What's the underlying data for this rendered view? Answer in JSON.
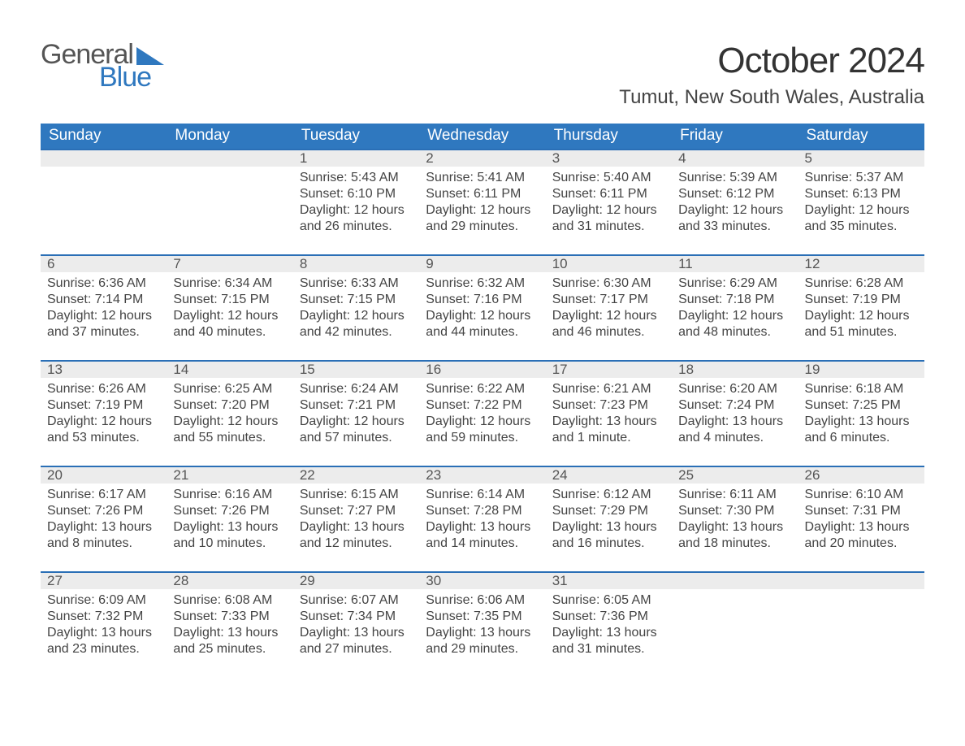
{
  "colors": {
    "header_blue": "#2f78bf",
    "accent_blue": "#2a6fb6",
    "daynum_bg": "#ececec",
    "text": "#444444",
    "daynum_text": "#555555",
    "logo_gray": "#555555",
    "logo_blue": "#2f78bf",
    "background": "#ffffff"
  },
  "typography": {
    "title_fontsize": 44,
    "subtitle_fontsize": 24,
    "header_fontsize": 19,
    "daynum_fontsize": 17,
    "body_fontsize": 16,
    "logo_fontsize": 34,
    "font_family": "Segoe UI"
  },
  "logo": {
    "line1": "General",
    "line2": "Blue"
  },
  "title": "October 2024",
  "subtitle": "Tumut, New South Wales, Australia",
  "weekday_headers": [
    "Sunday",
    "Monday",
    "Tuesday",
    "Wednesday",
    "Thursday",
    "Friday",
    "Saturday"
  ],
  "weeks": [
    [
      {
        "empty": true
      },
      {
        "empty": true
      },
      {
        "n": "1",
        "sunrise": "5:43 AM",
        "sunset": "6:10 PM",
        "daylight": "12 hours and 26 minutes."
      },
      {
        "n": "2",
        "sunrise": "5:41 AM",
        "sunset": "6:11 PM",
        "daylight": "12 hours and 29 minutes."
      },
      {
        "n": "3",
        "sunrise": "5:40 AM",
        "sunset": "6:11 PM",
        "daylight": "12 hours and 31 minutes."
      },
      {
        "n": "4",
        "sunrise": "5:39 AM",
        "sunset": "6:12 PM",
        "daylight": "12 hours and 33 minutes."
      },
      {
        "n": "5",
        "sunrise": "5:37 AM",
        "sunset": "6:13 PM",
        "daylight": "12 hours and 35 minutes."
      }
    ],
    [
      {
        "n": "6",
        "sunrise": "6:36 AM",
        "sunset": "7:14 PM",
        "daylight": "12 hours and 37 minutes."
      },
      {
        "n": "7",
        "sunrise": "6:34 AM",
        "sunset": "7:15 PM",
        "daylight": "12 hours and 40 minutes."
      },
      {
        "n": "8",
        "sunrise": "6:33 AM",
        "sunset": "7:15 PM",
        "daylight": "12 hours and 42 minutes."
      },
      {
        "n": "9",
        "sunrise": "6:32 AM",
        "sunset": "7:16 PM",
        "daylight": "12 hours and 44 minutes."
      },
      {
        "n": "10",
        "sunrise": "6:30 AM",
        "sunset": "7:17 PM",
        "daylight": "12 hours and 46 minutes."
      },
      {
        "n": "11",
        "sunrise": "6:29 AM",
        "sunset": "7:18 PM",
        "daylight": "12 hours and 48 minutes."
      },
      {
        "n": "12",
        "sunrise": "6:28 AM",
        "sunset": "7:19 PM",
        "daylight": "12 hours and 51 minutes."
      }
    ],
    [
      {
        "n": "13",
        "sunrise": "6:26 AM",
        "sunset": "7:19 PM",
        "daylight": "12 hours and 53 minutes."
      },
      {
        "n": "14",
        "sunrise": "6:25 AM",
        "sunset": "7:20 PM",
        "daylight": "12 hours and 55 minutes."
      },
      {
        "n": "15",
        "sunrise": "6:24 AM",
        "sunset": "7:21 PM",
        "daylight": "12 hours and 57 minutes."
      },
      {
        "n": "16",
        "sunrise": "6:22 AM",
        "sunset": "7:22 PM",
        "daylight": "12 hours and 59 minutes."
      },
      {
        "n": "17",
        "sunrise": "6:21 AM",
        "sunset": "7:23 PM",
        "daylight": "13 hours and 1 minute."
      },
      {
        "n": "18",
        "sunrise": "6:20 AM",
        "sunset": "7:24 PM",
        "daylight": "13 hours and 4 minutes."
      },
      {
        "n": "19",
        "sunrise": "6:18 AM",
        "sunset": "7:25 PM",
        "daylight": "13 hours and 6 minutes."
      }
    ],
    [
      {
        "n": "20",
        "sunrise": "6:17 AM",
        "sunset": "7:26 PM",
        "daylight": "13 hours and 8 minutes."
      },
      {
        "n": "21",
        "sunrise": "6:16 AM",
        "sunset": "7:26 PM",
        "daylight": "13 hours and 10 minutes."
      },
      {
        "n": "22",
        "sunrise": "6:15 AM",
        "sunset": "7:27 PM",
        "daylight": "13 hours and 12 minutes."
      },
      {
        "n": "23",
        "sunrise": "6:14 AM",
        "sunset": "7:28 PM",
        "daylight": "13 hours and 14 minutes."
      },
      {
        "n": "24",
        "sunrise": "6:12 AM",
        "sunset": "7:29 PM",
        "daylight": "13 hours and 16 minutes."
      },
      {
        "n": "25",
        "sunrise": "6:11 AM",
        "sunset": "7:30 PM",
        "daylight": "13 hours and 18 minutes."
      },
      {
        "n": "26",
        "sunrise": "6:10 AM",
        "sunset": "7:31 PM",
        "daylight": "13 hours and 20 minutes."
      }
    ],
    [
      {
        "n": "27",
        "sunrise": "6:09 AM",
        "sunset": "7:32 PM",
        "daylight": "13 hours and 23 minutes."
      },
      {
        "n": "28",
        "sunrise": "6:08 AM",
        "sunset": "7:33 PM",
        "daylight": "13 hours and 25 minutes."
      },
      {
        "n": "29",
        "sunrise": "6:07 AM",
        "sunset": "7:34 PM",
        "daylight": "13 hours and 27 minutes."
      },
      {
        "n": "30",
        "sunrise": "6:06 AM",
        "sunset": "7:35 PM",
        "daylight": "13 hours and 29 minutes."
      },
      {
        "n": "31",
        "sunrise": "6:05 AM",
        "sunset": "7:36 PM",
        "daylight": "13 hours and 31 minutes."
      },
      {
        "empty": true
      },
      {
        "empty": true
      }
    ]
  ],
  "labels": {
    "sunrise_prefix": "Sunrise: ",
    "sunset_prefix": "Sunset: ",
    "daylight_prefix": "Daylight: "
  }
}
